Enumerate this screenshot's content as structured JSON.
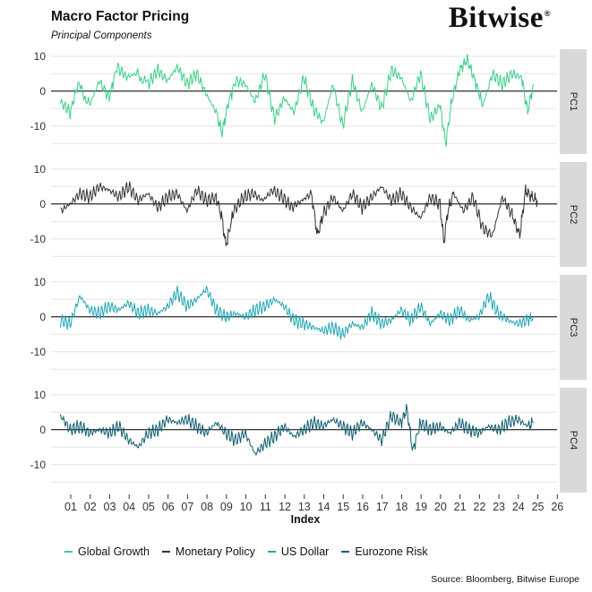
{
  "header": {
    "title": "Macro Factor Pricing",
    "subtitle": "Principal Components",
    "brand": "Bitwise",
    "brand_mark": "®"
  },
  "footer": {
    "source": "Source: Bloomberg, Bitwise Europe"
  },
  "colors": {
    "pc1": "#3ccf88",
    "pc2": "#333333",
    "pc3": "#22a6b3",
    "pc4": "#0f5c6e",
    "strip": "#d9d9d9",
    "grid": "#e6e6e6"
  },
  "chart_data": {
    "type": "line",
    "xlabel": "Index",
    "xlim": [
      0,
      26
    ],
    "x_ticks": [
      "01",
      "02",
      "03",
      "04",
      "05",
      "06",
      "07",
      "08",
      "09",
      "10",
      "11",
      "12",
      "13",
      "14",
      "15",
      "16",
      "17",
      "18",
      "19",
      "20",
      "21",
      "22",
      "23",
      "24",
      "25",
      "26"
    ],
    "ylim": [
      -18,
      12
    ],
    "y_ticks": [
      "10",
      "0",
      "-10"
    ],
    "legend_position": "bottom",
    "grid": true,
    "series": [
      {
        "name": "Global Growth",
        "panel": "PC1",
        "x": [
          0.3,
          0.8,
          1.2,
          1.8,
          2.3,
          2.8,
          3.2,
          3.7,
          4.2,
          4.8,
          5.3,
          5.8,
          6.3,
          6.8,
          7.3,
          7.8,
          8.3,
          8.6,
          8.9,
          9.3,
          9.8,
          10.3,
          10.8,
          11.3,
          11.8,
          12.3,
          12.8,
          13.3,
          13.8,
          14.3,
          14.8,
          15.3,
          15.8,
          16.3,
          16.8,
          17.3,
          17.8,
          18.3,
          18.8,
          19.3,
          19.8,
          20.1,
          20.4,
          20.8,
          21.2,
          21.6,
          22.0,
          22.5,
          23.0,
          23.5,
          24.0,
          24.3,
          24.6
        ],
        "y": [
          -3,
          -6,
          2,
          -4,
          3,
          -2,
          7,
          4,
          5,
          2,
          6,
          3,
          7,
          2,
          5,
          -1,
          -6,
          -12,
          -4,
          3,
          2,
          -3,
          5,
          -8,
          -2,
          -6,
          4,
          -5,
          -9,
          2,
          -10,
          3,
          -6,
          2,
          -5,
          6,
          4,
          -3,
          5,
          -8,
          -4,
          -15,
          -3,
          6,
          9,
          3,
          -4,
          5,
          2,
          5,
          4,
          -6,
          2
        ]
      },
      {
        "name": "Monetary Policy",
        "panel": "PC2",
        "x": [
          0.3,
          0.8,
          1.3,
          1.8,
          2.3,
          2.8,
          3.3,
          3.8,
          4.3,
          4.8,
          5.3,
          5.8,
          6.3,
          6.8,
          7.3,
          7.8,
          8.3,
          8.6,
          8.8,
          9.2,
          9.7,
          10.2,
          10.7,
          11.2,
          11.7,
          12.2,
          12.7,
          13.2,
          13.5,
          13.8,
          14.3,
          14.8,
          15.3,
          15.8,
          16.3,
          16.8,
          17.3,
          17.8,
          18.3,
          18.8,
          19.3,
          19.8,
          20.0,
          20.2,
          20.5,
          21.0,
          21.5,
          22.0,
          22.5,
          23.0,
          23.5,
          23.9,
          24.2,
          24.5,
          24.8
        ],
        "y": [
          -2,
          0,
          3,
          2,
          5,
          4,
          2,
          5,
          1,
          3,
          -1,
          2,
          3,
          -2,
          4,
          1,
          2,
          -4,
          -12,
          -2,
          2,
          3,
          1,
          4,
          2,
          -1,
          1,
          3,
          -9,
          -3,
          2,
          -2,
          3,
          -1,
          2,
          5,
          1,
          3,
          -1,
          -4,
          2,
          0,
          -11,
          -2,
          3,
          -2,
          2,
          -7,
          -9,
          2,
          -3,
          -9,
          4,
          2,
          1
        ]
      },
      {
        "name": "US Dollar",
        "panel": "PC3",
        "x": [
          0.3,
          0.8,
          1.3,
          1.8,
          2.3,
          2.8,
          3.3,
          3.8,
          4.3,
          4.8,
          5.3,
          5.8,
          6.3,
          6.8,
          7.3,
          7.8,
          8.3,
          8.8,
          9.3,
          9.8,
          10.3,
          10.8,
          11.3,
          11.8,
          12.3,
          12.8,
          13.3,
          13.8,
          14.3,
          14.8,
          15.3,
          15.8,
          16.3,
          16.8,
          17.3,
          17.8,
          18.3,
          18.8,
          19.3,
          19.8,
          20.3,
          20.8,
          21.3,
          21.8,
          22.3,
          22.8,
          23.3,
          23.8,
          24.3,
          24.6
        ],
        "y": [
          -1,
          -2,
          6,
          2,
          1,
          3,
          2,
          4,
          1,
          2,
          1,
          3,
          7,
          3,
          5,
          8,
          2,
          0,
          1,
          0,
          2,
          3,
          5,
          3,
          -1,
          -2,
          -3,
          -4,
          -3,
          -5,
          -2,
          -3,
          1,
          -2,
          -1,
          2,
          -1,
          3,
          -2,
          1,
          -1,
          2,
          -1,
          0,
          6,
          1,
          -1,
          -2,
          -1,
          0
        ]
      },
      {
        "name": "Eurozone Risk",
        "panel": "PC4",
        "x": [
          0.3,
          0.8,
          1.3,
          1.8,
          2.3,
          2.8,
          3.3,
          3.8,
          4.3,
          4.8,
          5.3,
          5.8,
          6.3,
          6.8,
          7.3,
          7.8,
          8.3,
          8.8,
          9.3,
          9.8,
          10.3,
          10.8,
          11.3,
          11.8,
          12.3,
          12.8,
          13.3,
          13.8,
          14.3,
          14.8,
          15.3,
          15.8,
          16.3,
          16.8,
          17.3,
          17.8,
          18.1,
          18.4,
          18.8,
          19.3,
          19.8,
          20.3,
          20.8,
          21.3,
          21.8,
          22.3,
          22.8,
          23.3,
          23.8,
          24.3,
          24.6
        ],
        "y": [
          4,
          0,
          1,
          -1,
          0,
          -1,
          1,
          -3,
          -5,
          -1,
          0,
          3,
          2,
          3,
          1,
          -1,
          2,
          -1,
          -3,
          -1,
          -7,
          -4,
          -2,
          1,
          -2,
          0,
          2,
          1,
          3,
          1,
          -1,
          2,
          0,
          -3,
          4,
          2,
          6,
          -6,
          2,
          0,
          1,
          -1,
          2,
          0,
          -1,
          1,
          0,
          2,
          3,
          1,
          2
        ]
      }
    ]
  }
}
